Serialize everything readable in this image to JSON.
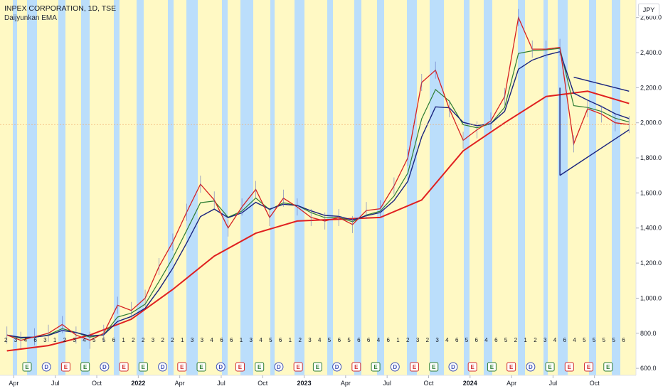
{
  "header": {
    "title": "INPEX CORPORATION, 1D, TSE",
    "indicator": "Daijyunkan EMA"
  },
  "currency": "JPY",
  "colors": {
    "yellow_band": "#fff9c4",
    "blue_band": "#bbdefb",
    "price": "#d62020",
    "ema_long": "#e02020",
    "ema_mid": "#1a237e",
    "ema_green": "#2e7d32",
    "trendline": "#1a237e"
  },
  "chart_data": {
    "type": "line",
    "x_ticks": [
      "Apr",
      "Jul",
      "Oct",
      "2022",
      "Apr",
      "Jul",
      "Oct",
      "2023",
      "Apr",
      "Jul",
      "Oct",
      "2024",
      "Apr",
      "Jul",
      "Oct"
    ],
    "y_ticks": [
      "600.0",
      "800.0",
      "1,000.0",
      "1,200.0",
      "1,400.0",
      "1,600.0",
      "1,800.0",
      "2,000.0",
      "2,200.0",
      "2,400.0",
      "2,600.0"
    ],
    "ylim": [
      560,
      2700
    ],
    "x_range": [
      "2021-03",
      "2024-12"
    ],
    "series": [
      {
        "type": "price",
        "x": [
          "2021-03",
          "2021-04",
          "2021-05",
          "2021-06",
          "2021-07",
          "2021-08",
          "2021-09",
          "2021-10",
          "2021-11",
          "2021-12",
          "2022-01",
          "2022-02",
          "2022-03",
          "2022-04",
          "2022-05",
          "2022-06",
          "2022-07",
          "2022-08",
          "2022-09",
          "2022-10",
          "2022-11",
          "2022-12",
          "2023-01",
          "2023-02",
          "2023-03",
          "2023-04",
          "2023-05",
          "2023-06",
          "2023-07",
          "2023-08",
          "2023-09",
          "2023-10",
          "2023-11",
          "2023-12",
          "2024-01",
          "2024-02",
          "2024-03",
          "2024-04",
          "2024-05",
          "2024-06",
          "2024-07",
          "2024-08",
          "2024-09",
          "2024-10",
          "2024-11",
          "2024-12"
        ],
        "values": [
          790,
          760,
          780,
          800,
          850,
          790,
          760,
          800,
          960,
          930,
          1000,
          1180,
          1320,
          1490,
          1650,
          1560,
          1400,
          1520,
          1620,
          1460,
          1570,
          1520,
          1460,
          1440,
          1460,
          1420,
          1500,
          1510,
          1640,
          1800,
          2230,
          2300,
          2080,
          1900,
          1960,
          2010,
          2150,
          2600,
          2420,
          2420,
          2430,
          1880,
          2080,
          2050,
          2000,
          1990
        ]
      },
      {
        "type": "ema_long",
        "x": [
          "2021-03",
          "2021-06",
          "2021-09",
          "2021-12",
          "2022-03",
          "2022-06",
          "2022-09",
          "2022-12",
          "2023-03",
          "2023-06",
          "2023-09",
          "2023-12",
          "2024-03",
          "2024-06",
          "2024-09",
          "2024-12"
        ],
        "values": [
          700,
          730,
          790,
          880,
          1050,
          1240,
          1370,
          1440,
          1450,
          1460,
          1560,
          1840,
          2000,
          2150,
          2180,
          2110
        ]
      }
    ],
    "trend_lines": [
      {
        "from": [
          "2024-08",
          2260
        ],
        "to": [
          "2024-12",
          2180
        ]
      },
      {
        "from": [
          "2024-07",
          1700
        ],
        "to": [
          "2024-12",
          1960
        ]
      },
      {
        "from": [
          "2024-07",
          2200
        ],
        "to": [
          "2024-07",
          1700
        ]
      }
    ],
    "event_labels": [
      "2",
      "3",
      "4",
      "6",
      "3",
      "1",
      "2",
      "3",
      "4",
      "5",
      "5",
      "6",
      "1",
      "2",
      "2",
      "3",
      "2",
      "2",
      "1",
      "3",
      "3",
      "4",
      "6",
      "6",
      "1",
      "3",
      "4",
      "5",
      "6",
      "1",
      "2",
      "3",
      "4",
      "5",
      "6",
      "5",
      "6",
      "6",
      "4",
      "6",
      "1",
      "2",
      "3",
      "2",
      "3",
      "4",
      "6",
      "5",
      "6",
      "4",
      "6",
      "5",
      "2",
      "1",
      "2",
      "3",
      "4",
      "6",
      "4",
      "5",
      "5",
      "5",
      "5",
      "6"
    ],
    "badges": [
      "E",
      "D",
      "E",
      "E",
      "D",
      "E",
      "E",
      "D",
      "E",
      "E",
      "D",
      "E",
      "E",
      "D",
      "E",
      "E",
      "D",
      "E",
      "E",
      "D",
      "E",
      "E",
      "D",
      "E",
      "E",
      "E",
      "D",
      "E",
      "E",
      "E",
      "E"
    ]
  }
}
